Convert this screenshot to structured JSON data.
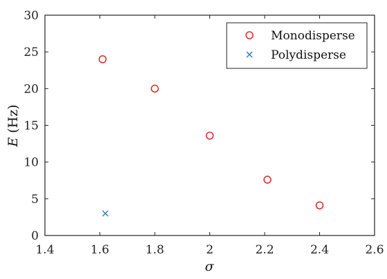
{
  "chart_data": {
    "type": "scatter",
    "xlabel": "σ",
    "ylabel": {
      "var": "E",
      "unit": "(Hz)"
    },
    "xlim": [
      1.4,
      2.6
    ],
    "ylim": [
      0,
      30
    ],
    "xticks": [
      "1.4",
      "1.6",
      "1.8",
      "2",
      "2.2",
      "2.4",
      "2.6"
    ],
    "yticks": [
      "0",
      "5",
      "10",
      "15",
      "20",
      "25",
      "30"
    ],
    "grid": false,
    "legend_position": "top-right",
    "series": [
      {
        "name": "Monodisperse",
        "marker": "circle",
        "color": "#e03030",
        "points": [
          {
            "x": 1.61,
            "y": 24.0
          },
          {
            "x": 1.8,
            "y": 20.0
          },
          {
            "x": 2.0,
            "y": 13.6
          },
          {
            "x": 2.21,
            "y": 7.6
          },
          {
            "x": 2.4,
            "y": 4.1
          }
        ]
      },
      {
        "name": "Polydisperse",
        "marker": "x",
        "color": "#2f7fc0",
        "points": [
          {
            "x": 1.62,
            "y": 3.0
          }
        ]
      }
    ]
  }
}
